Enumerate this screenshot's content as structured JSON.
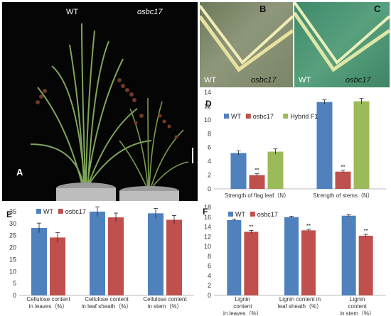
{
  "panel_a": {
    "letter": "A",
    "label_wt": "WT",
    "label_mutant": "osbc17"
  },
  "panel_b": {
    "letter": "B",
    "label_wt": "WT",
    "label_mutant": "osbc17"
  },
  "panel_c": {
    "letter": "C",
    "label_wt": "WT",
    "label_mutant": "osbc17"
  },
  "colors": {
    "wt": "#4f81bd",
    "mutant": "#c0504d",
    "hybrid": "#9bbb59"
  },
  "chart_data": [
    {
      "id": "D",
      "type": "bar",
      "panel_letter": "D",
      "categories": [
        "Strength of flag leaf（N）",
        "Strength of stems（N）"
      ],
      "series": [
        {
          "name": "WT",
          "values": [
            5.2,
            12.6
          ],
          "errors": [
            0.3,
            0.3
          ]
        },
        {
          "name": "osbc17",
          "values": [
            2.0,
            2.5
          ],
          "errors": [
            0.2,
            0.2
          ]
        },
        {
          "name": "Hybrid F1",
          "values": [
            5.4,
            12.7
          ],
          "errors": [
            0.4,
            0.4
          ]
        }
      ],
      "significance": [
        [
          "",
          "**",
          ""
        ],
        [
          "",
          "**",
          ""
        ]
      ],
      "yticks": [
        "0",
        "2",
        "4",
        "6",
        "8",
        "10",
        "12",
        "14"
      ],
      "ylim": [
        0,
        14
      ],
      "legend_position": "top-left",
      "title": "",
      "xlabel": "",
      "ylabel": ""
    },
    {
      "id": "E",
      "type": "bar",
      "panel_letter": "E",
      "categories": [
        "Cellulose content in leaves（%）",
        "Cellulose content in leaf sheath（%）",
        "Cellulose content in stem（%）"
      ],
      "category_lines": [
        [
          "Cellulose content",
          "in leaves（%）"
        ],
        [
          "Cellulose content",
          "in leaf sheath（%）"
        ],
        [
          "Cellulose content",
          "in stem（%）"
        ]
      ],
      "series": [
        {
          "name": "WT",
          "values": [
            28.2,
            35.0,
            34.3
          ],
          "errors": [
            2.0,
            2.0,
            2.0
          ]
        },
        {
          "name": "osbc17",
          "values": [
            24.2,
            32.6,
            31.6
          ],
          "errors": [
            2.0,
            1.8,
            1.8
          ]
        }
      ],
      "yticks": [
        "0",
        "5",
        "10",
        "15",
        "20",
        "25",
        "30",
        "35"
      ],
      "ylim": [
        0,
        35
      ],
      "legend_position": "top-left",
      "title": "",
      "xlabel": "",
      "ylabel": ""
    },
    {
      "id": "F",
      "type": "bar",
      "panel_letter": "F",
      "categories": [
        "Lignin content in leaves（%）",
        "Lignin content in leaf sheath（%）",
        "Lignin content in stem（%）"
      ],
      "category_lines": [
        [
          "Lignin",
          "content",
          "in leaves（%）"
        ],
        [
          "Lignin content in",
          "leaf sheath（%）"
        ],
        [
          "Lignin",
          "content",
          "in stem（%）"
        ]
      ],
      "series": [
        {
          "name": "WT",
          "values": [
            15.4,
            16.0,
            16.3
          ],
          "errors": [
            0.2,
            0.2,
            0.2
          ]
        },
        {
          "name": "osbc17",
          "values": [
            13.0,
            13.3,
            12.2
          ],
          "errors": [
            0.3,
            0.2,
            0.3
          ]
        }
      ],
      "significance": [
        [
          "",
          "**"
        ],
        [
          "",
          "**"
        ],
        [
          "",
          "**"
        ]
      ],
      "yticks": [
        "0",
        "2",
        "4",
        "6",
        "8",
        "10",
        "12",
        "14",
        "16",
        "18"
      ],
      "ylim": [
        0,
        18
      ],
      "legend_position": "top-left",
      "title": "",
      "xlabel": "",
      "ylabel": ""
    }
  ]
}
